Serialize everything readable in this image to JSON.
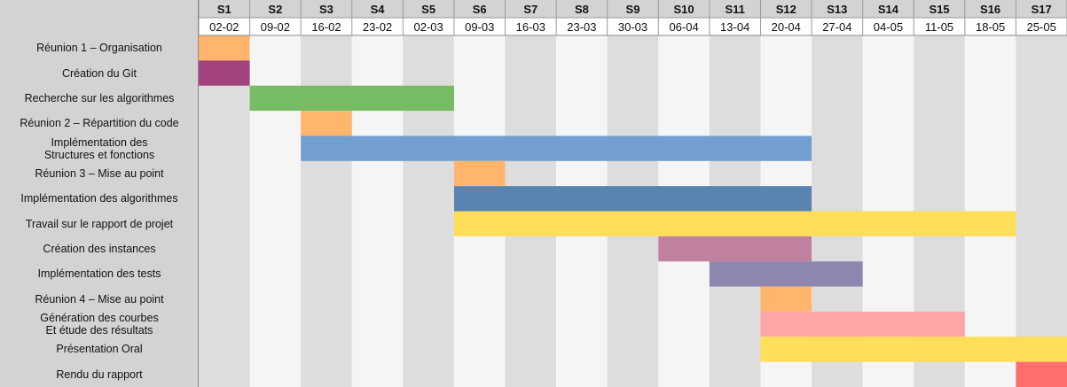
{
  "chart_data": {
    "type": "gantt",
    "weeks": [
      {
        "name": "S1",
        "date": "02-02"
      },
      {
        "name": "S2",
        "date": "09-02"
      },
      {
        "name": "S3",
        "date": "16-02"
      },
      {
        "name": "S4",
        "date": "23-02"
      },
      {
        "name": "S5",
        "date": "02-03"
      },
      {
        "name": "S6",
        "date": "09-03"
      },
      {
        "name": "S7",
        "date": "16-03"
      },
      {
        "name": "S8",
        "date": "23-03"
      },
      {
        "name": "S9",
        "date": "30-03"
      },
      {
        "name": "S10",
        "date": "06-04"
      },
      {
        "name": "S11",
        "date": "13-04"
      },
      {
        "name": "S12",
        "date": "20-04"
      },
      {
        "name": "S13",
        "date": "27-04"
      },
      {
        "name": "S14",
        "date": "04-05"
      },
      {
        "name": "S15",
        "date": "11-05"
      },
      {
        "name": "S16",
        "date": "18-05"
      },
      {
        "name": "S17",
        "date": "25-05"
      }
    ],
    "tasks": [
      {
        "label": "Réunion 1 – Organisation",
        "start": "S1",
        "end": "S1",
        "color": "#ffb56b"
      },
      {
        "label": "Création du Git",
        "start": "S1",
        "end": "S1",
        "color": "#a3437e"
      },
      {
        "label": "Recherche sur les algorithmes",
        "start": "S2",
        "end": "S5",
        "color": "#77bc65"
      },
      {
        "label": "Réunion 2 – Répartition du code",
        "start": "S3",
        "end": "S3",
        "color": "#ffb56b"
      },
      {
        "label": "Implémentation des\nStructures et fonctions",
        "start": "S3",
        "end": "S12",
        "color": "#729fcf"
      },
      {
        "label": "Réunion 3 – Mise au point",
        "start": "S6",
        "end": "S6",
        "color": "#ffb56b"
      },
      {
        "label": "Implémentation des algorithmes",
        "start": "S6",
        "end": "S12",
        "color": "#5983b0"
      },
      {
        "label": "Travail sur le rapport de projet",
        "start": "S6",
        "end": "S16",
        "color": "#ffde59"
      },
      {
        "label": "Création des instances",
        "start": "S10",
        "end": "S12",
        "color": "#bf819e"
      },
      {
        "label": "Implémentation des tests",
        "start": "S11",
        "end": "S13",
        "color": "#8e86ae"
      },
      {
        "label": "Réunion 4 – Mise au point",
        "start": "S12",
        "end": "S12",
        "color": "#ffb56b"
      },
      {
        "label": "Génération des courbes\nEt étude des résultats",
        "start": "S12",
        "end": "S15",
        "color": "#ffa6a6"
      },
      {
        "label": "Présentation Oral",
        "start": "S12",
        "end": "S17",
        "color": "#ffde59"
      },
      {
        "label": "Rendu du rapport",
        "start": "S17",
        "end": "S17",
        "color": "#ff6d6d"
      }
    ],
    "colors": {
      "header_bg": "#d3d3d3",
      "stripe_gray": "#dddddd",
      "stripe_white": "#f5f5f5",
      "grid_line": "#ffffff"
    }
  }
}
